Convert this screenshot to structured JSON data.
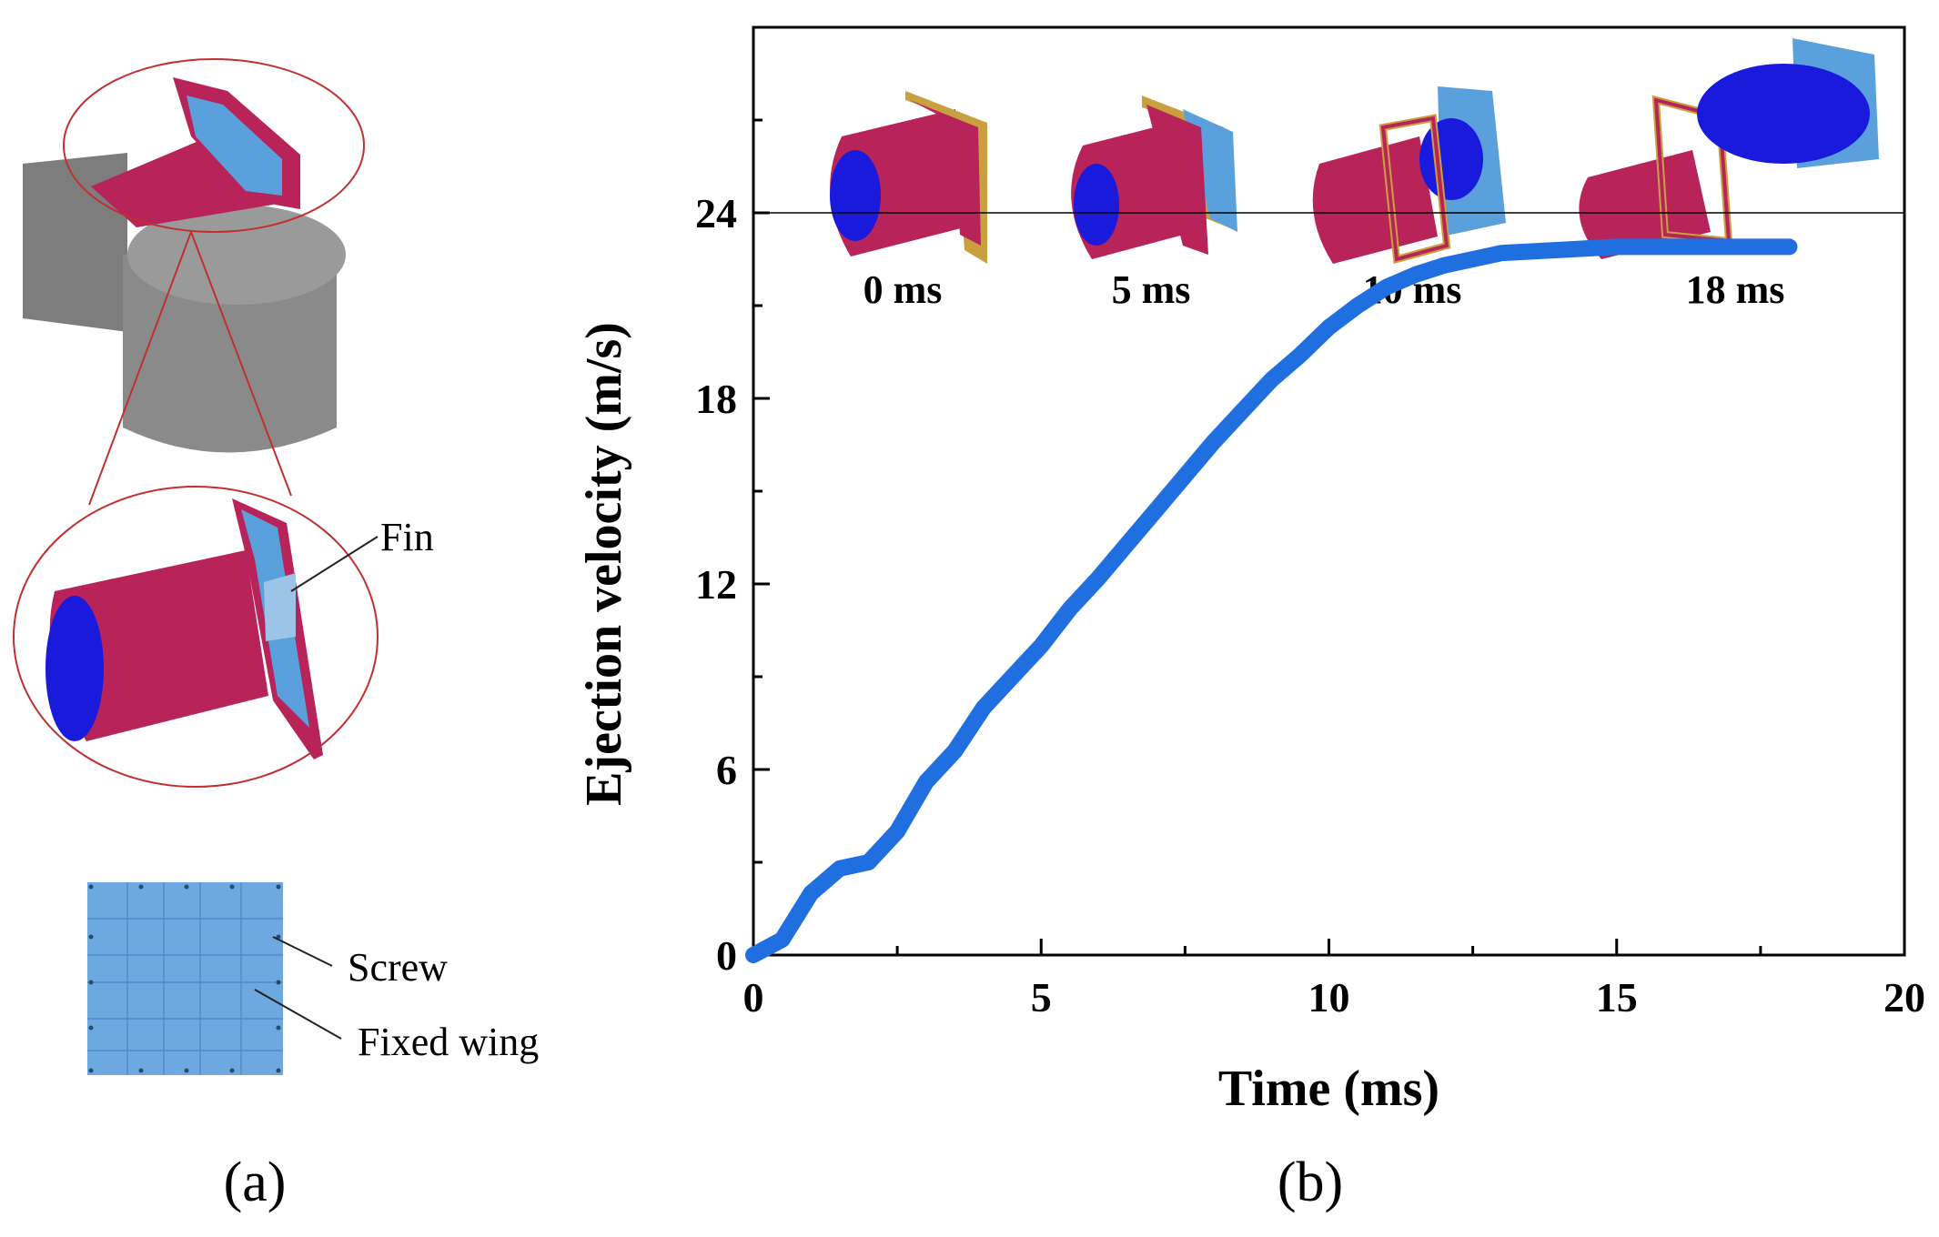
{
  "panel_a": {
    "label": "(a)",
    "annotations": {
      "fin": "Fin",
      "screw": "Screw",
      "fixed_wing": "Fixed wing"
    }
  },
  "panel_b": {
    "label": "(b)",
    "inset_labels": [
      "0 ms",
      "5 ms",
      "10 ms",
      "18 ms"
    ]
  },
  "colors": {
    "line": "#1f6fe0",
    "tube": "#b8235a",
    "missile": "#1a1adc",
    "wing": "#5aa0dc",
    "mesh": "#7d7d7d",
    "circle": "#c03030"
  },
  "chart_data": {
    "type": "line",
    "title": "",
    "xlabel": "Time (ms)",
    "ylabel": "Ejection velocity (m/s)",
    "xlim": [
      0,
      20
    ],
    "ylim": [
      0,
      30
    ],
    "xticks": [
      0,
      5,
      10,
      15,
      20
    ],
    "yticks": [
      0,
      6,
      12,
      18,
      24
    ],
    "reference_line_y": 24,
    "series": [
      {
        "name": "Ejection velocity",
        "x": [
          0,
          0.5,
          1.0,
          1.5,
          2.0,
          2.5,
          3.0,
          3.5,
          4.0,
          4.5,
          5.0,
          5.5,
          6.0,
          6.5,
          7.0,
          7.5,
          8.0,
          8.5,
          9.0,
          9.5,
          10.0,
          10.5,
          11.0,
          11.5,
          12.0,
          12.5,
          13.0,
          14.0,
          15.0,
          16.0,
          17.0,
          18.0
        ],
        "y": [
          0,
          0.5,
          2.0,
          2.8,
          3.0,
          4.0,
          5.6,
          6.6,
          8.0,
          9.0,
          10.0,
          11.2,
          12.2,
          13.3,
          14.4,
          15.5,
          16.6,
          17.6,
          18.6,
          19.4,
          20.3,
          21.0,
          21.6,
          22.0,
          22.3,
          22.5,
          22.7,
          22.8,
          22.9,
          22.9,
          22.9,
          22.9
        ]
      }
    ]
  }
}
